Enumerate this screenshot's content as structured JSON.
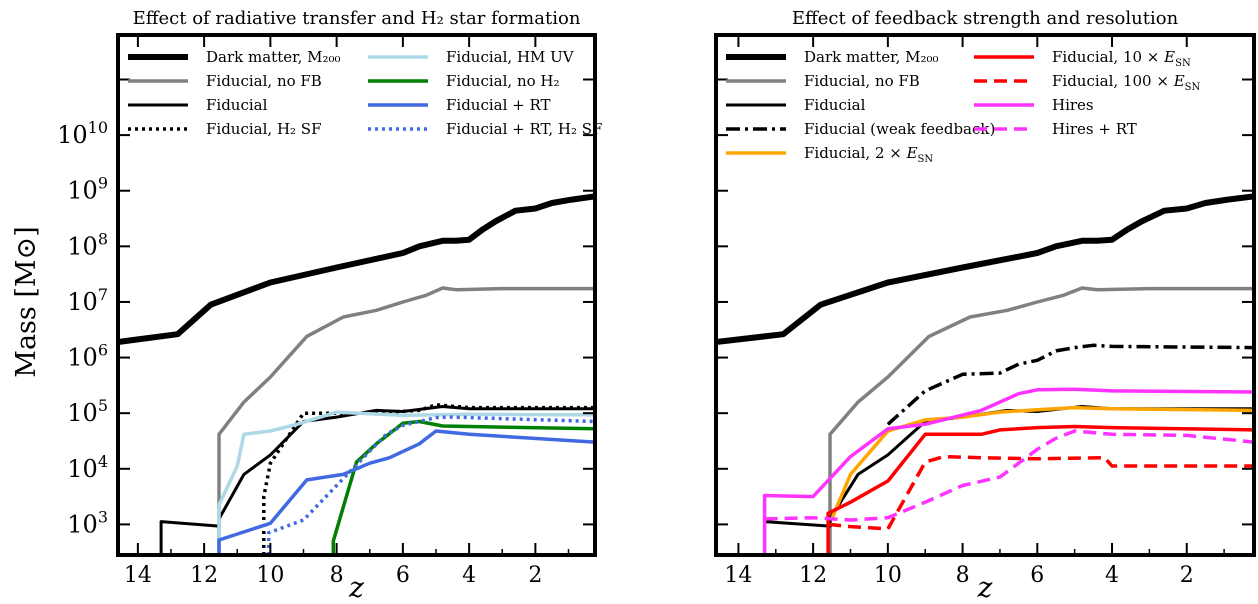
{
  "chart_data": [
    {
      "type": "line",
      "title": "Effect of radiative transfer and H₂ star formation",
      "xlabel": "z",
      "ylabel": "Mass [M⊙]",
      "xlim": [
        14.6,
        0.2
      ],
      "ylim_log10": [
        2.45,
        11.8
      ],
      "yscale": "log",
      "xticks": [
        "14",
        "12",
        "10",
        "8",
        "6",
        "4",
        "2"
      ],
      "yticks": [
        "10^3",
        "10^4",
        "10^5",
        "10^6",
        "10^7",
        "10^8",
        "10^9",
        "10^10"
      ],
      "grid": false,
      "legend_position": "top",
      "series": [
        {
          "name": "Dark matter, M200",
          "color": "#000000",
          "style": "solid",
          "width": 6,
          "points": [
            [
              14.6,
              6.28
            ],
            [
              12.8,
              6.42
            ],
            [
              11.8,
              6.95
            ],
            [
              10.0,
              7.35
            ],
            [
              8.0,
              7.62
            ],
            [
              6.0,
              7.88
            ],
            [
              5.5,
              8.0
            ],
            [
              4.8,
              8.1
            ],
            [
              4.4,
              8.1
            ],
            [
              4.0,
              8.12
            ],
            [
              3.6,
              8.3
            ],
            [
              3.2,
              8.45
            ],
            [
              2.6,
              8.64
            ],
            [
              2.0,
              8.68
            ],
            [
              1.5,
              8.78
            ],
            [
              0.9,
              8.84
            ],
            [
              0.2,
              8.9
            ]
          ]
        },
        {
          "name": "Fiducial, no FB",
          "color": "#808080",
          "style": "solid",
          "width": 3.5,
          "points": [
            [
              11.55,
              2.45
            ],
            [
              11.55,
              4.62
            ],
            [
              10.8,
              5.2
            ],
            [
              10.0,
              5.65
            ],
            [
              8.9,
              6.38
            ],
            [
              7.8,
              6.73
            ],
            [
              6.8,
              6.85
            ],
            [
              6.0,
              7.0
            ],
            [
              5.3,
              7.12
            ],
            [
              4.8,
              7.25
            ],
            [
              4.4,
              7.22
            ],
            [
              3.0,
              7.24
            ],
            [
              0.2,
              7.24
            ]
          ]
        },
        {
          "name": "Fiducial",
          "color": "#000000",
          "style": "solid",
          "width": 3,
          "points": [
            [
              13.3,
              2.45
            ],
            [
              13.3,
              3.05
            ],
            [
              11.55,
              2.97
            ],
            [
              11.55,
              3.1
            ],
            [
              10.8,
              3.9
            ],
            [
              10.0,
              4.25
            ],
            [
              9.0,
              4.85
            ],
            [
              8.0,
              4.93
            ],
            [
              6.8,
              5.05
            ],
            [
              6.0,
              5.03
            ],
            [
              4.8,
              5.12
            ],
            [
              4.0,
              5.08
            ],
            [
              0.2,
              5.08
            ]
          ]
        },
        {
          "name": "Fiducial, H2 SF",
          "color": "#000000",
          "style": "dotted",
          "width": 3.5,
          "points": [
            [
              10.2,
              2.45
            ],
            [
              10.2,
              3.5
            ],
            [
              10.0,
              4.1
            ],
            [
              9.0,
              5.0
            ],
            [
              8.0,
              5.0
            ],
            [
              7.0,
              5.0
            ],
            [
              5.5,
              5.05
            ],
            [
              5.0,
              5.15
            ],
            [
              4.0,
              5.1
            ],
            [
              0.2,
              5.1
            ]
          ]
        },
        {
          "name": "Fiducial,  HM UV",
          "color": "#add8e6",
          "style": "solid",
          "width": 3.5,
          "points": [
            [
              11.55,
              2.45
            ],
            [
              11.55,
              3.35
            ],
            [
              11.0,
              4.05
            ],
            [
              10.8,
              4.62
            ],
            [
              10.0,
              4.68
            ],
            [
              9.2,
              4.8
            ],
            [
              8.0,
              5.02
            ],
            [
              6.0,
              4.96
            ],
            [
              4.0,
              4.98
            ],
            [
              0.2,
              4.97
            ]
          ]
        },
        {
          "name": "Fiducial, no H2",
          "color": "#008000",
          "style": "solid",
          "width": 3.5,
          "points": [
            [
              8.1,
              2.45
            ],
            [
              8.1,
              2.7
            ],
            [
              7.4,
              4.12
            ],
            [
              6.8,
              4.45
            ],
            [
              6.0,
              4.82
            ],
            [
              5.5,
              4.85
            ],
            [
              4.8,
              4.77
            ],
            [
              3.0,
              4.75
            ],
            [
              0.2,
              4.72
            ]
          ]
        },
        {
          "name": "Fiducial + RT",
          "color": "#4169e1",
          "style": "solid",
          "width": 3.5,
          "points": [
            [
              11.55,
              2.45
            ],
            [
              11.55,
              2.72
            ],
            [
              10.0,
              3.02
            ],
            [
              8.9,
              3.8
            ],
            [
              7.8,
              3.9
            ],
            [
              7.0,
              4.1
            ],
            [
              6.4,
              4.2
            ],
            [
              5.5,
              4.45
            ],
            [
              5.0,
              4.68
            ],
            [
              4.0,
              4.62
            ],
            [
              0.2,
              4.48
            ]
          ]
        },
        {
          "name": "Fiducial + RT, H2 SF",
          "color": "#4169e1",
          "style": "dotted",
          "width": 3.5,
          "points": [
            [
              10.05,
              2.45
            ],
            [
              10.05,
              2.85
            ],
            [
              9.0,
              3.08
            ],
            [
              8.0,
              3.7
            ],
            [
              7.0,
              4.32
            ],
            [
              6.5,
              4.62
            ],
            [
              6.0,
              4.78
            ],
            [
              5.0,
              4.92
            ],
            [
              4.5,
              4.93
            ],
            [
              4.0,
              4.92
            ],
            [
              0.2,
              4.85
            ]
          ]
        }
      ],
      "legend": [
        {
          "label": "Dark matter, M₂₀₀",
          "col": 0,
          "row": 0
        },
        {
          "label": "Fiducial,  no FB",
          "col": 0,
          "row": 1
        },
        {
          "label": "Fiducial",
          "col": 0,
          "row": 2
        },
        {
          "label": "Fiducial,  H₂ SF",
          "col": 0,
          "row": 3
        },
        {
          "label": "Fiducial,  HM UV",
          "col": 1,
          "row": 0
        },
        {
          "label": "Fiducial, no H₂",
          "col": 1,
          "row": 1
        },
        {
          "label": "Fiducial + RT",
          "col": 1,
          "row": 2
        },
        {
          "label": "Fiducial + RT, H₂ SF",
          "col": 1,
          "row": 3
        }
      ]
    },
    {
      "type": "line",
      "title": "Effect of feedback strength and resolution",
      "xlabel": "z",
      "ylabel": "",
      "xlim": [
        14.6,
        0.2
      ],
      "ylim_log10": [
        2.45,
        11.8
      ],
      "yscale": "log",
      "xticks": [
        "14",
        "12",
        "10",
        "8",
        "6",
        "4",
        "2"
      ],
      "grid": false,
      "legend_position": "top",
      "series": [
        {
          "name": "Dark matter, M200",
          "color": "#000000",
          "style": "solid",
          "width": 6,
          "points": [
            [
              14.6,
              6.28
            ],
            [
              12.8,
              6.42
            ],
            [
              11.8,
              6.95
            ],
            [
              10.0,
              7.35
            ],
            [
              8.0,
              7.62
            ],
            [
              6.0,
              7.88
            ],
            [
              5.5,
              8.0
            ],
            [
              4.8,
              8.1
            ],
            [
              4.4,
              8.1
            ],
            [
              4.0,
              8.12
            ],
            [
              3.6,
              8.3
            ],
            [
              3.2,
              8.45
            ],
            [
              2.6,
              8.64
            ],
            [
              2.0,
              8.68
            ],
            [
              1.5,
              8.78
            ],
            [
              0.9,
              8.84
            ],
            [
              0.2,
              8.9
            ]
          ]
        },
        {
          "name": "Fiducial, no FB",
          "color": "#808080",
          "style": "solid",
          "width": 3.5,
          "points": [
            [
              11.55,
              2.45
            ],
            [
              11.55,
              4.62
            ],
            [
              10.8,
              5.2
            ],
            [
              10.0,
              5.65
            ],
            [
              8.9,
              6.38
            ],
            [
              7.8,
              6.73
            ],
            [
              6.8,
              6.85
            ],
            [
              6.0,
              7.0
            ],
            [
              5.3,
              7.12
            ],
            [
              4.8,
              7.25
            ],
            [
              4.4,
              7.22
            ],
            [
              3.0,
              7.24
            ],
            [
              0.2,
              7.24
            ]
          ]
        },
        {
          "name": "Fiducial",
          "color": "#000000",
          "style": "solid",
          "width": 3,
          "points": [
            [
              13.3,
              2.45
            ],
            [
              13.3,
              3.05
            ],
            [
              11.55,
              2.97
            ],
            [
              11.55,
              3.1
            ],
            [
              10.8,
              3.9
            ],
            [
              10.0,
              4.25
            ],
            [
              9.0,
              4.85
            ],
            [
              8.0,
              4.93
            ],
            [
              6.8,
              5.05
            ],
            [
              6.0,
              5.03
            ],
            [
              4.8,
              5.12
            ],
            [
              4.0,
              5.08
            ],
            [
              0.2,
              5.08
            ]
          ]
        },
        {
          "name": "Fiducial (weak feedback)",
          "color": "#000000",
          "style": "dashdot",
          "width": 3.5,
          "points": [
            [
              10.0,
              4.8
            ],
            [
              9.0,
              5.4
            ],
            [
              8.0,
              5.7
            ],
            [
              7.0,
              5.72
            ],
            [
              6.5,
              5.88
            ],
            [
              6.0,
              5.95
            ],
            [
              5.5,
              6.12
            ],
            [
              5.0,
              6.18
            ],
            [
              4.5,
              6.22
            ],
            [
              4.0,
              6.2
            ],
            [
              0.2,
              6.18
            ]
          ]
        },
        {
          "name": "Fiducial, 2 × ESN",
          "color": "#ffa500",
          "style": "solid",
          "width": 3.5,
          "points": [
            [
              11.5,
              3.1
            ],
            [
              11.0,
              3.9
            ],
            [
              10.0,
              4.68
            ],
            [
              9.0,
              4.88
            ],
            [
              8.0,
              4.93
            ],
            [
              7.0,
              5.02
            ],
            [
              6.0,
              5.06
            ],
            [
              5.0,
              5.1
            ],
            [
              4.0,
              5.08
            ],
            [
              0.2,
              5.05
            ]
          ]
        },
        {
          "name": "Fiducial, 10 × ESN",
          "color": "#ff0000",
          "style": "solid",
          "width": 3.5,
          "points": [
            [
              11.6,
              2.45
            ],
            [
              11.6,
              3.2
            ],
            [
              11.0,
              3.4
            ],
            [
              10.0,
              3.78
            ],
            [
              9.0,
              4.62
            ],
            [
              7.5,
              4.62
            ],
            [
              7.0,
              4.7
            ],
            [
              6.0,
              4.74
            ],
            [
              5.0,
              4.76
            ],
            [
              4.0,
              4.74
            ],
            [
              0.2,
              4.7
            ]
          ]
        },
        {
          "name": "Fiducial, 100 × ESN",
          "color": "#ff0000",
          "style": "dashed",
          "width": 3.5,
          "points": [
            [
              11.6,
              3.0
            ],
            [
              11.0,
              2.96
            ],
            [
              10.0,
              2.92
            ],
            [
              9.0,
              4.12
            ],
            [
              8.5,
              4.22
            ],
            [
              7.5,
              4.2
            ],
            [
              6.0,
              4.18
            ],
            [
              4.2,
              4.2
            ],
            [
              4.0,
              4.05
            ],
            [
              2.0,
              4.05
            ],
            [
              0.2,
              4.05
            ]
          ]
        },
        {
          "name": "Hires",
          "color": "#ff33ff",
          "style": "solid",
          "width": 3.5,
          "points": [
            [
              13.3,
              2.45
            ],
            [
              13.3,
              3.52
            ],
            [
              12.0,
              3.5
            ],
            [
              11.0,
              4.22
            ],
            [
              10.0,
              4.72
            ],
            [
              9.0,
              4.8
            ],
            [
              7.5,
              5.05
            ],
            [
              6.5,
              5.35
            ],
            [
              6.0,
              5.42
            ],
            [
              5.0,
              5.43
            ],
            [
              4.0,
              5.4
            ],
            [
              0.2,
              5.38
            ]
          ]
        },
        {
          "name": "Hires + RT",
          "color": "#ff33ff",
          "style": "dashed",
          "width": 3.5,
          "points": [
            [
              13.3,
              3.1
            ],
            [
              12.0,
              3.12
            ],
            [
              11.0,
              3.08
            ],
            [
              10.0,
              3.12
            ],
            [
              9.0,
              3.4
            ],
            [
              8.0,
              3.7
            ],
            [
              7.0,
              3.85
            ],
            [
              6.5,
              4.1
            ],
            [
              6.0,
              4.35
            ],
            [
              5.5,
              4.55
            ],
            [
              5.0,
              4.68
            ],
            [
              4.0,
              4.62
            ],
            [
              2.0,
              4.6
            ],
            [
              0.2,
              4.48
            ]
          ]
        }
      ],
      "legend": [
        {
          "label": "Dark matter, M₂₀₀",
          "col": 0,
          "row": 0
        },
        {
          "label": "Fiducial,  no FB",
          "col": 0,
          "row": 1
        },
        {
          "label": "Fiducial",
          "col": 0,
          "row": 2
        },
        {
          "label": "Fiducial (weak feedback)",
          "col": 0,
          "row": 3
        },
        {
          "label": "Fiducial, 2 × E_SN",
          "col": 0,
          "row": 4
        },
        {
          "label": "Fiducial, 10 × E_SN",
          "col": 1,
          "row": 0
        },
        {
          "label": "Fiducial, 100 × E_SN",
          "col": 1,
          "row": 1
        },
        {
          "label": "Hires",
          "col": 1,
          "row": 2
        },
        {
          "label": "Hires + RT",
          "col": 1,
          "row": 3
        }
      ]
    }
  ]
}
